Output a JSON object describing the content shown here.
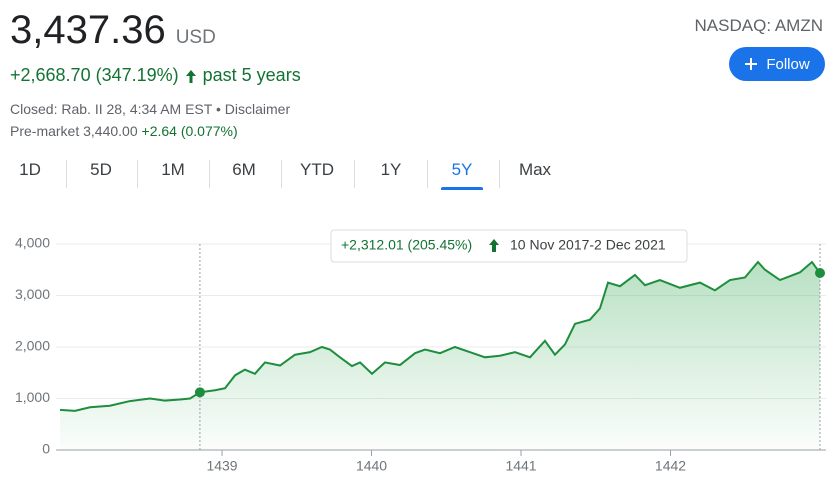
{
  "header": {
    "price": "3,437.36",
    "currency": "USD",
    "change": "+2,668.70 (347.19%)",
    "period": "past 5 years",
    "closed": "Closed: Rab. II 28, 4:34 AM EST",
    "separator": "•",
    "disclaimer": "Disclaimer",
    "premarket": "Pre-market 3,440.00",
    "premarket_change": "+2.64 (0.077%)",
    "exchange": "NASDAQ: AMZN",
    "follow": "Follow"
  },
  "tabs": {
    "items": [
      "1D",
      "5D",
      "1M",
      "6M",
      "YTD",
      "1Y",
      "5Y",
      "Max"
    ],
    "active": 6
  },
  "chart_data": {
    "type": "line",
    "annotations": [
      "+2,312.01 (205.45%)",
      "10 Nov 2017-2 Dec 2021"
    ],
    "x": [
      1437.916,
      1438.016,
      1438.117,
      1438.25,
      1438.384,
      1438.518,
      1438.618,
      1438.719,
      1438.786,
      1438.852,
      1438.953,
      1439.02,
      1439.087,
      1439.153,
      1439.22,
      1439.287,
      1439.388,
      1439.488,
      1439.588,
      1439.668,
      1439.722,
      1439.789,
      1439.869,
      1439.923,
      1440.003,
      1440.09,
      1440.19,
      1440.291,
      1440.358,
      1440.458,
      1440.558,
      1440.659,
      1440.759,
      1440.859,
      1440.96,
      1441.06,
      1441.16,
      1441.227,
      1441.294,
      1441.361,
      1441.461,
      1441.528,
      1441.582,
      1441.662,
      1441.762,
      1441.829,
      1441.929,
      1442.063,
      1442.197,
      1442.297,
      1442.398,
      1442.498,
      1442.585,
      1442.632,
      1442.732,
      1442.866,
      1442.946,
      1443.0
    ],
    "series": [
      {
        "color": "#1e8e3e",
        "values": [
          780,
          760,
          830,
          860,
          950,
          1000,
          960,
          980,
          1000,
          1120,
          1160,
          1200,
          1450,
          1560,
          1480,
          1700,
          1640,
          1850,
          1900,
          2000,
          1950,
          1800,
          1630,
          1700,
          1480,
          1700,
          1650,
          1880,
          1950,
          1880,
          2000,
          1900,
          1800,
          1830,
          1900,
          1800,
          2120,
          1850,
          2050,
          2450,
          2530,
          2750,
          3250,
          3180,
          3400,
          3200,
          3300,
          3150,
          3250,
          3100,
          3300,
          3350,
          3650,
          3500,
          3300,
          3450,
          3650,
          3437.36
        ]
      }
    ],
    "xlim": [
      1437.916,
      1443.0
    ],
    "xticks": [
      1439,
      1440,
      1441,
      1442
    ],
    "ylim": [
      0,
      4000
    ],
    "yticks": [
      0,
      {
        "value": 1000,
        "label": "1,000"
      },
      {
        "value": 2000,
        "label": "2,000"
      },
      {
        "value": 3000,
        "label": "3,000"
      },
      {
        "value": 4000,
        "label": "4,000"
      }
    ],
    "grid": true,
    "highlight": [
      9,
      57
    ]
  }
}
